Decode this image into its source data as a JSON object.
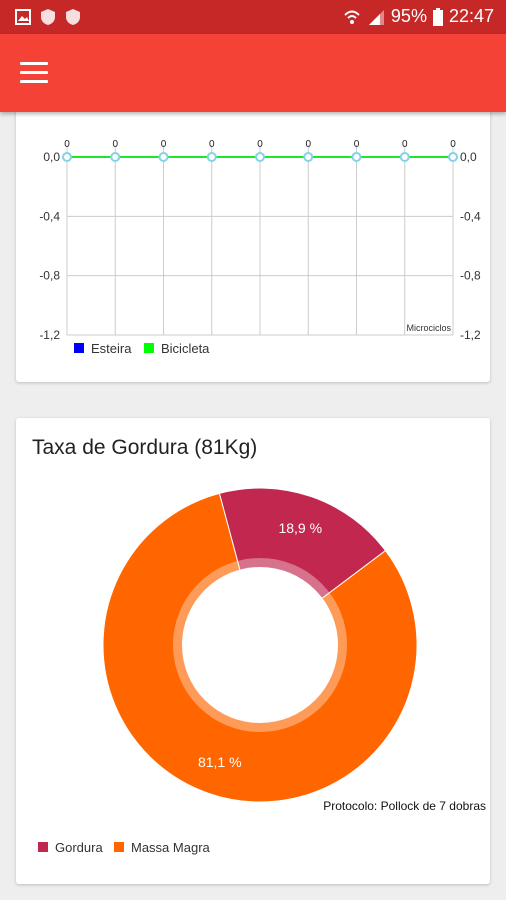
{
  "status_bar": {
    "battery": "95%",
    "time": "22:47",
    "icons": [
      "image-icon",
      "shield-icon",
      "shield-icon",
      "wifi-icon",
      "signal-icon",
      "battery-icon"
    ]
  },
  "app_bar": {
    "menu_icon": "hamburger-menu-icon"
  },
  "colors": {
    "status_bar": "#c62828",
    "app_bar": "#f44336",
    "gordura": "#c2274f",
    "massa_magra": "#ff6600",
    "esteira": "#0000ff",
    "bicicleta": "#00ff00"
  },
  "chart_data": [
    {
      "type": "line",
      "x": [
        1,
        2,
        3,
        4,
        5,
        6,
        7,
        8,
        9
      ],
      "series": [
        {
          "name": "Esteira",
          "values": [
            0,
            0,
            0,
            0,
            0,
            0,
            0,
            0,
            0
          ]
        },
        {
          "name": "Bicicleta",
          "values": [
            0,
            0,
            0,
            0,
            0,
            0,
            0,
            0,
            0
          ]
        }
      ],
      "point_labels": [
        "0",
        "0",
        "0",
        "0",
        "0",
        "0",
        "0",
        "0",
        "0"
      ],
      "y_ticks": [
        "0,0",
        "-0,4",
        "-0,8",
        "-1,2"
      ],
      "ylim": [
        -1.2,
        0
      ],
      "xlabel": "Microciclos",
      "grid": true,
      "legend": "bottom-left"
    },
    {
      "type": "pie",
      "title": "Taxa de Gordura (81Kg)",
      "categories": [
        "Gordura",
        "Massa Magra"
      ],
      "values": [
        18.9,
        81.1
      ],
      "value_labels": [
        "18,9 %",
        "81,1 %"
      ],
      "note": "Protocolo: Pollock de 7 dobras",
      "legend": "bottom-left"
    }
  ]
}
